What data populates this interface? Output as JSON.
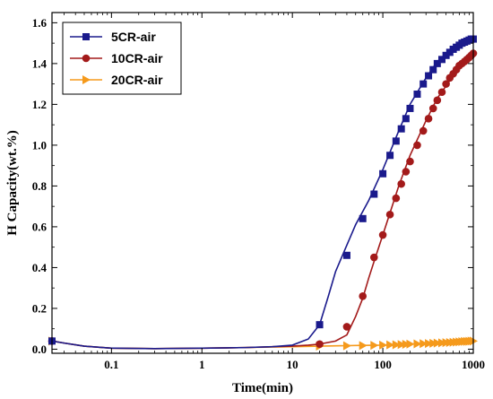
{
  "chart_data": {
    "type": "line",
    "xlabel": "Time(min)",
    "ylabel": "H Capacity(wt.%)",
    "xscale": "log",
    "xlim": [
      0.022,
      1000
    ],
    "ylim": [
      -0.02,
      1.65
    ],
    "x_ticks": [
      0.1,
      1,
      10,
      100,
      1000
    ],
    "x_tick_labels": [
      "0.1",
      "1",
      "10",
      "100",
      "1000"
    ],
    "y_ticks": [
      0.0,
      0.2,
      0.4,
      0.6,
      0.8,
      1.0,
      1.2,
      1.4,
      1.6
    ],
    "y_tick_labels": [
      "0.0",
      "0.2",
      "0.4",
      "0.6",
      "0.8",
      "1.0",
      "1.2",
      "1.4",
      "1.6"
    ],
    "legend_position": "top-left",
    "grid": false,
    "series": [
      {
        "name": "5CR-air",
        "color": "#1a1a8c",
        "marker": "square",
        "line_x": [
          0.022,
          0.03,
          0.05,
          0.1,
          0.3,
          1,
          3,
          6,
          10,
          15,
          20,
          25,
          30,
          40,
          50,
          70,
          100,
          150,
          200,
          300,
          400,
          600,
          800,
          1000
        ],
        "line_y": [
          0.04,
          0.03,
          0.015,
          0.005,
          0.003,
          0.005,
          0.008,
          0.012,
          0.02,
          0.05,
          0.12,
          0.26,
          0.38,
          0.51,
          0.61,
          0.73,
          0.88,
          1.07,
          1.2,
          1.33,
          1.41,
          1.48,
          1.51,
          1.52
        ],
        "marker_x": [
          0.022,
          20,
          40,
          60,
          80,
          100,
          120,
          140,
          160,
          180,
          200,
          240,
          280,
          320,
          360,
          400,
          450,
          500,
          550,
          600,
          650,
          700,
          750,
          800,
          850,
          900,
          950,
          1000
        ],
        "marker_y": [
          0.04,
          0.12,
          0.46,
          0.64,
          0.76,
          0.86,
          0.95,
          1.02,
          1.08,
          1.13,
          1.18,
          1.25,
          1.3,
          1.34,
          1.37,
          1.4,
          1.42,
          1.44,
          1.455,
          1.47,
          1.48,
          1.49,
          1.5,
          1.505,
          1.51,
          1.515,
          1.52,
          1.52
        ]
      },
      {
        "name": "10CR-air",
        "color": "#a31a1a",
        "marker": "circle",
        "line_x": [
          0.022,
          0.03,
          0.05,
          0.1,
          0.3,
          1,
          3,
          6,
          10,
          15,
          20,
          30,
          40,
          50,
          60,
          70,
          80,
          100,
          150,
          200,
          300,
          400,
          600,
          800,
          1000
        ],
        "line_y": [
          0.04,
          0.03,
          0.015,
          0.005,
          0.003,
          0.005,
          0.008,
          0.012,
          0.015,
          0.02,
          0.025,
          0.04,
          0.07,
          0.16,
          0.25,
          0.35,
          0.43,
          0.56,
          0.8,
          0.95,
          1.12,
          1.23,
          1.34,
          1.41,
          1.45
        ],
        "marker_x": [
          0.022,
          20,
          40,
          60,
          80,
          100,
          120,
          140,
          160,
          180,
          200,
          240,
          280,
          320,
          360,
          400,
          450,
          500,
          550,
          600,
          650,
          700,
          750,
          800,
          850,
          900,
          950,
          1000
        ],
        "marker_y": [
          0.04,
          0.025,
          0.11,
          0.26,
          0.45,
          0.56,
          0.66,
          0.74,
          0.81,
          0.87,
          0.92,
          1.0,
          1.07,
          1.13,
          1.18,
          1.22,
          1.26,
          1.3,
          1.33,
          1.35,
          1.37,
          1.39,
          1.4,
          1.41,
          1.42,
          1.43,
          1.44,
          1.45
        ]
      },
      {
        "name": "20CR-air",
        "color": "#f59a1c",
        "marker": "triangle-right",
        "line_x": [
          0.022,
          0.03,
          0.05,
          0.1,
          0.3,
          1,
          3,
          10,
          20,
          50,
          100,
          200,
          500,
          1000
        ],
        "line_y": [
          0.04,
          0.03,
          0.015,
          0.005,
          0.003,
          0.005,
          0.008,
          0.012,
          0.015,
          0.018,
          0.02,
          0.025,
          0.033,
          0.04
        ],
        "marker_x": [
          0.022,
          20,
          40,
          60,
          80,
          100,
          120,
          140,
          160,
          180,
          200,
          240,
          280,
          320,
          360,
          400,
          450,
          500,
          550,
          600,
          650,
          700,
          750,
          800,
          850,
          900,
          950,
          1000
        ],
        "marker_y": [
          0.04,
          0.015,
          0.017,
          0.018,
          0.019,
          0.02,
          0.021,
          0.022,
          0.023,
          0.024,
          0.025,
          0.026,
          0.027,
          0.028,
          0.029,
          0.03,
          0.031,
          0.032,
          0.033,
          0.034,
          0.035,
          0.036,
          0.037,
          0.038,
          0.038,
          0.039,
          0.04,
          0.04
        ]
      }
    ]
  }
}
